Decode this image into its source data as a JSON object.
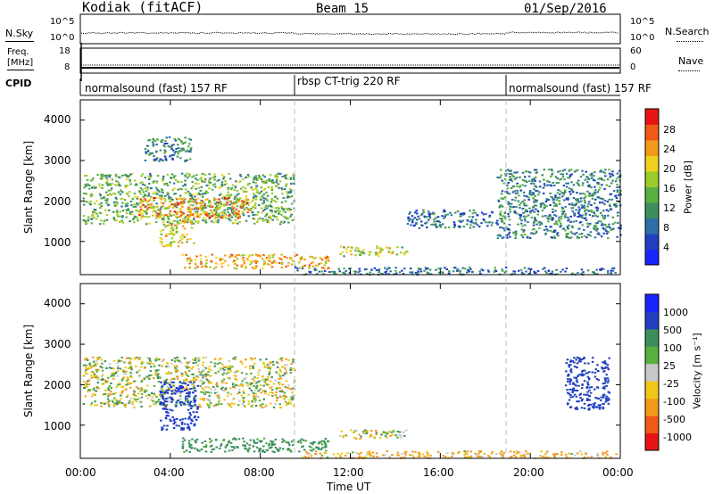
{
  "header": {
    "station": "Kodiak (fitACF)",
    "beam": "Beam 15",
    "date": "01/Sep/2016"
  },
  "top_panels": {
    "nsky_label": "N.Sky",
    "nsearch_label": "N.Search",
    "noise_ticks": [
      "10^5",
      "10^0"
    ],
    "freq_label_1": "Freq.",
    "freq_label_2": "[MHz]",
    "freq_ticks": [
      "18",
      "8"
    ],
    "nave_label": "Nave",
    "nave_ticks": [
      "60",
      "0"
    ],
    "cpid_label": "CPID"
  },
  "cpid_segments": [
    {
      "label": "normalsound (fast) 157 RF",
      "start_hour": 0
    },
    {
      "label": "rbsp CT-trig 220 RF",
      "start_hour": 9.6
    },
    {
      "label": "normalsound (fast) 157 RF",
      "start_hour": 19.0
    }
  ],
  "colors": {
    "power": [
      "#1a24ff",
      "#1f3fbf",
      "#2e6fa8",
      "#3c8f5c",
      "#58b040",
      "#9ccc2a",
      "#f0d21e",
      "#f49a1a",
      "#ef5a16",
      "#e61414"
    ],
    "velocity": [
      "#e61414",
      "#ef5a16",
      "#f49a1a",
      "#f0c818",
      "#c8c8c8",
      "#58b040",
      "#3c8f5c",
      "#1f3fbf",
      "#1a24ff"
    ]
  },
  "chart_data": [
    {
      "type": "heatmap",
      "quantity": "Power",
      "xlabel": "",
      "ylabel": "Slant Range [km]",
      "xlim": [
        0,
        24
      ],
      "ylim": [
        180,
        4500
      ],
      "yticks": [
        "4000",
        "3000",
        "2000",
        "1000"
      ],
      "ytick_values": [
        4000,
        3000,
        2000,
        1000
      ],
      "colorbar": {
        "label": "Power [dB]",
        "range": [
          0,
          32
        ],
        "ticks": [
          "28",
          "24",
          "20",
          "16",
          "12",
          "8",
          "4"
        ],
        "tick_values": [
          28,
          24,
          20,
          16,
          12,
          8,
          4
        ]
      },
      "regions": [
        {
          "t0": 0.1,
          "t1": 9.5,
          "r0": 1450,
          "r1": 2700,
          "power": 14
        },
        {
          "t0": 2.5,
          "t1": 7.5,
          "r0": 1600,
          "r1": 2100,
          "power": 24
        },
        {
          "t0": 2.8,
          "t1": 5.0,
          "r0": 3000,
          "r1": 3600,
          "power": 10
        },
        {
          "t0": 3.5,
          "t1": 5.0,
          "r0": 900,
          "r1": 1700,
          "power": 20
        },
        {
          "t0": 4.5,
          "t1": 11.0,
          "r0": 350,
          "r1": 700,
          "power": 22
        },
        {
          "t0": 11.5,
          "t1": 14.5,
          "r0": 650,
          "r1": 900,
          "power": 18
        },
        {
          "t0": 9.5,
          "t1": 23.8,
          "r0": 200,
          "r1": 380,
          "power": 8
        },
        {
          "t0": 14.5,
          "t1": 18.5,
          "r0": 1350,
          "r1": 1800,
          "power": 8
        },
        {
          "t0": 18.5,
          "t1": 24.0,
          "r0": 1100,
          "r1": 2800,
          "power": 10
        }
      ]
    },
    {
      "type": "heatmap",
      "quantity": "Velocity",
      "xlabel": "Time UT",
      "ylabel": "Slant Range [km]",
      "xlim": [
        0,
        24
      ],
      "ylim": [
        180,
        4500
      ],
      "xticks": [
        "00:00",
        "04:00",
        "08:00",
        "12:00",
        "16:00",
        "20:00",
        "00:00"
      ],
      "xtick_hours": [
        0,
        4,
        8,
        12,
        16,
        20,
        24
      ],
      "yticks": [
        "4000",
        "3000",
        "2000",
        "1000"
      ],
      "ytick_values": [
        4000,
        3000,
        2000,
        1000
      ],
      "colorbar": {
        "label": "Velocity [m s⁻¹]",
        "ticks": [
          "1000",
          "500",
          "100",
          "25",
          "-25",
          "-100",
          "-500",
          "-1000"
        ]
      },
      "regions": [
        {
          "t0": 0.1,
          "t1": 9.5,
          "r0": 1450,
          "r1": 2700,
          "velocity": 0
        },
        {
          "t0": 3.5,
          "t1": 5.2,
          "r0": 900,
          "r1": 2100,
          "velocity": 900
        },
        {
          "t0": 4.5,
          "t1": 11.0,
          "r0": 350,
          "r1": 700,
          "velocity": 200
        },
        {
          "t0": 11.5,
          "t1": 14.5,
          "r0": 650,
          "r1": 900,
          "velocity": 0
        },
        {
          "t0": 9.5,
          "t1": 23.8,
          "r0": 200,
          "r1": 380,
          "velocity": -120
        },
        {
          "t0": 21.5,
          "t1": 23.5,
          "r0": 1400,
          "r1": 2700,
          "velocity": 800
        }
      ]
    }
  ]
}
